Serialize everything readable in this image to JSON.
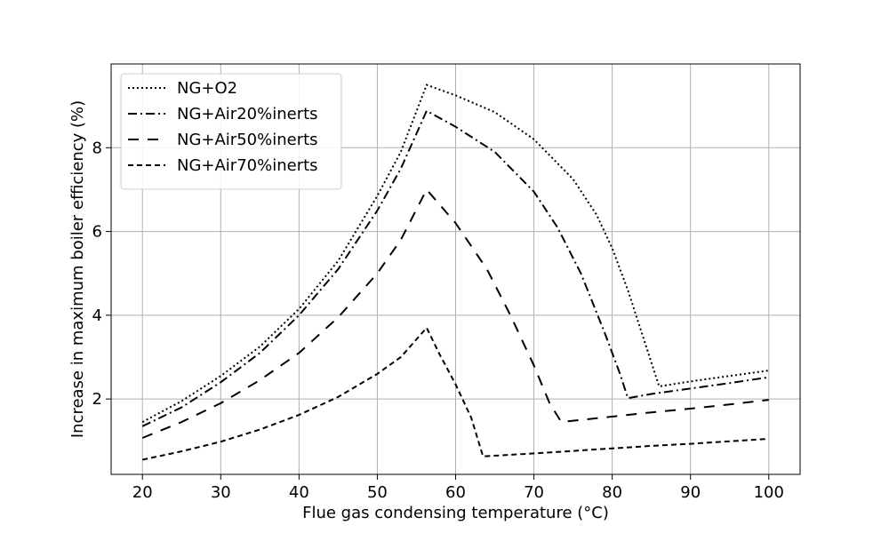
{
  "chart_data": {
    "type": "line",
    "title": "",
    "xlabel": "Flue gas condensing temperature (°C)",
    "ylabel": "Increase in maximum boiler efficiency (%)",
    "xlim": [
      16,
      104
    ],
    "ylim": [
      0.2,
      10.0
    ],
    "xticks": [
      20,
      30,
      40,
      50,
      60,
      70,
      80,
      90,
      100
    ],
    "yticks": [
      2,
      4,
      6,
      8
    ],
    "grid": true,
    "legend_position": "top-left",
    "series": [
      {
        "name": "NG+O2",
        "style": "dotted",
        "color": "#000000",
        "points": [
          [
            20,
            1.45
          ],
          [
            25,
            1.95
          ],
          [
            30,
            2.55
          ],
          [
            35,
            3.25
          ],
          [
            40,
            4.15
          ],
          [
            45,
            5.3
          ],
          [
            50,
            6.85
          ],
          [
            53,
            7.9
          ],
          [
            56.3,
            9.5
          ],
          [
            60,
            9.25
          ],
          [
            65,
            8.85
          ],
          [
            70,
            8.2
          ],
          [
            75,
            7.25
          ],
          [
            78,
            6.4
          ],
          [
            80,
            5.6
          ],
          [
            82,
            4.6
          ],
          [
            84,
            3.45
          ],
          [
            86,
            2.3
          ],
          [
            90,
            2.42
          ],
          [
            95,
            2.55
          ],
          [
            100,
            2.68
          ]
        ]
      },
      {
        "name": "NG+Air20%inerts",
        "style": "dashdot",
        "color": "#000000",
        "points": [
          [
            20,
            1.35
          ],
          [
            25,
            1.8
          ],
          [
            30,
            2.4
          ],
          [
            35,
            3.1
          ],
          [
            40,
            4.0
          ],
          [
            45,
            5.1
          ],
          [
            50,
            6.5
          ],
          [
            53,
            7.5
          ],
          [
            56.3,
            8.88
          ],
          [
            60,
            8.5
          ],
          [
            65,
            7.9
          ],
          [
            70,
            6.95
          ],
          [
            73,
            6.1
          ],
          [
            76,
            5.0
          ],
          [
            79,
            3.6
          ],
          [
            81,
            2.6
          ],
          [
            82,
            2.02
          ],
          [
            85,
            2.12
          ],
          [
            90,
            2.25
          ],
          [
            95,
            2.38
          ],
          [
            100,
            2.52
          ]
        ]
      },
      {
        "name": "NG+Air50%inerts",
        "style": "dashed",
        "color": "#000000",
        "points": [
          [
            20,
            1.07
          ],
          [
            25,
            1.45
          ],
          [
            30,
            1.9
          ],
          [
            35,
            2.45
          ],
          [
            40,
            3.1
          ],
          [
            45,
            3.95
          ],
          [
            50,
            5.0
          ],
          [
            53,
            5.8
          ],
          [
            56.3,
            7.0
          ],
          [
            60,
            6.2
          ],
          [
            64,
            5.1
          ],
          [
            67,
            4.0
          ],
          [
            70,
            2.8
          ],
          [
            72,
            1.9
          ],
          [
            73.5,
            1.45
          ],
          [
            80,
            1.58
          ],
          [
            85,
            1.68
          ],
          [
            90,
            1.77
          ],
          [
            95,
            1.87
          ],
          [
            100,
            1.98
          ]
        ]
      },
      {
        "name": "NG+Air70%inerts",
        "style": "loosely-dashed",
        "color": "#000000",
        "points": [
          [
            20,
            0.55
          ],
          [
            25,
            0.75
          ],
          [
            30,
            0.98
          ],
          [
            35,
            1.27
          ],
          [
            40,
            1.62
          ],
          [
            45,
            2.05
          ],
          [
            50,
            2.6
          ],
          [
            53,
            3.0
          ],
          [
            56.3,
            3.7
          ],
          [
            58,
            3.05
          ],
          [
            60,
            2.35
          ],
          [
            62,
            1.55
          ],
          [
            63.5,
            0.63
          ],
          [
            70,
            0.7
          ],
          [
            75,
            0.76
          ],
          [
            80,
            0.82
          ],
          [
            85,
            0.88
          ],
          [
            90,
            0.93
          ],
          [
            95,
            0.99
          ],
          [
            100,
            1.05
          ]
        ]
      }
    ]
  }
}
